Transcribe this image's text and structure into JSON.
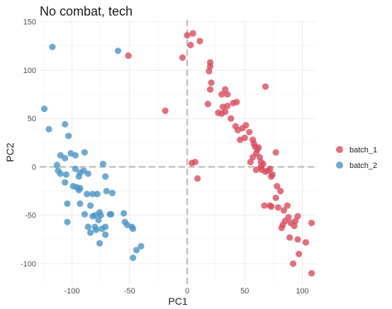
{
  "chart_data": {
    "type": "scatter",
    "title": "No combat, tech",
    "xlabel": "PC1",
    "ylabel": "PC2",
    "xlim": [
      -128,
      112
    ],
    "ylim": [
      -122,
      152
    ],
    "x_ticks": [
      -100,
      -50,
      0,
      50,
      100
    ],
    "y_ticks": [
      -100,
      -50,
      0,
      50,
      100,
      150
    ],
    "grid": true,
    "legend_position": "right",
    "reference_lines": {
      "x": 0,
      "y": 0
    },
    "series": [
      {
        "name": "batch_1",
        "color": "#D94B5E",
        "points": [
          [
            0,
            136
          ],
          [
            5,
            138
          ],
          [
            3,
            126
          ],
          [
            11,
            130
          ],
          [
            -4,
            113
          ],
          [
            -51,
            115
          ],
          [
            -19,
            58
          ],
          [
            20,
            104
          ],
          [
            20,
            108
          ],
          [
            19,
            99
          ],
          [
            21,
            87
          ],
          [
            20,
            80
          ],
          [
            18,
            65
          ],
          [
            30,
            75
          ],
          [
            33,
            80
          ],
          [
            35,
            75
          ],
          [
            40,
            66
          ],
          [
            43,
            67
          ],
          [
            27,
            56
          ],
          [
            30,
            55
          ],
          [
            33,
            57
          ],
          [
            31,
            62
          ],
          [
            35,
            63
          ],
          [
            68,
            83
          ],
          [
            38,
            50
          ],
          [
            42,
            42
          ],
          [
            44,
            38
          ],
          [
            48,
            40
          ],
          [
            51,
            43
          ],
          [
            54,
            36
          ],
          [
            46,
            28
          ],
          [
            50,
            30
          ],
          [
            57,
            28
          ],
          [
            58,
            24
          ],
          [
            59,
            21
          ],
          [
            61,
            18
          ],
          [
            60,
            14
          ],
          [
            62,
            20
          ],
          [
            63,
            10
          ],
          [
            64,
            5
          ],
          [
            57,
            10
          ],
          [
            55,
            5
          ],
          [
            64,
            0
          ],
          [
            66,
            3
          ],
          [
            60,
            -3
          ],
          [
            65,
            -3
          ],
          [
            70,
            -4
          ],
          [
            72,
            -2
          ],
          [
            74,
            -8
          ],
          [
            77,
            15
          ],
          [
            68,
            -5
          ],
          [
            73,
            -10
          ],
          [
            78,
            -20
          ],
          [
            81,
            -25
          ],
          [
            77,
            -32
          ],
          [
            67,
            -40
          ],
          [
            72,
            -40
          ],
          [
            73,
            -41
          ],
          [
            79,
            -42
          ],
          [
            84,
            -45
          ],
          [
            87,
            -40
          ],
          [
            85,
            -56
          ],
          [
            88,
            -52
          ],
          [
            90,
            -58
          ],
          [
            93,
            -61
          ],
          [
            96,
            -51
          ],
          [
            94,
            -56
          ],
          [
            83,
            -60
          ],
          [
            82,
            -63
          ],
          [
            89,
            -73
          ],
          [
            96,
            -75
          ],
          [
            103,
            -78
          ],
          [
            108,
            -58
          ],
          [
            97,
            -90
          ],
          [
            92,
            -100
          ],
          [
            108,
            -110
          ],
          [
            7,
            5
          ],
          [
            4,
            4
          ],
          [
            9,
            -12
          ]
        ]
      },
      {
        "name": "batch_2",
        "color": "#4B94C4",
        "points": [
          [
            -117,
            124
          ],
          [
            -60,
            120
          ],
          [
            -124,
            60
          ],
          [
            -120,
            39
          ],
          [
            -106,
            44
          ],
          [
            -103,
            32
          ],
          [
            -113,
            2
          ],
          [
            -110,
            12
          ],
          [
            -106,
            9
          ],
          [
            -101,
            14
          ],
          [
            -97,
            12
          ],
          [
            -89,
            15
          ],
          [
            -112,
            -4
          ],
          [
            -110,
            -7
          ],
          [
            -105,
            -8
          ],
          [
            -106,
            -16
          ],
          [
            -97,
            -2
          ],
          [
            -90,
            -4
          ],
          [
            -93,
            -6
          ],
          [
            -94,
            -10
          ],
          [
            -86,
            -7
          ],
          [
            -73,
            3
          ],
          [
            -96,
            -21
          ],
          [
            -99,
            -20
          ],
          [
            -93,
            -22
          ],
          [
            -94,
            -24
          ],
          [
            -87,
            -28
          ],
          [
            -82,
            -28
          ],
          [
            -78,
            -28
          ],
          [
            -70,
            -25
          ],
          [
            -65,
            -27
          ],
          [
            -104,
            -38
          ],
          [
            -93,
            -38
          ],
          [
            -84,
            -40
          ],
          [
            -89,
            -49
          ],
          [
            -82,
            -51
          ],
          [
            -76,
            -47
          ],
          [
            -75,
            -50
          ],
          [
            -77,
            -55
          ],
          [
            -66,
            -49
          ],
          [
            -67,
            -49
          ],
          [
            -104,
            -57
          ],
          [
            -86,
            -62
          ],
          [
            -80,
            -62
          ],
          [
            -79,
            -65
          ],
          [
            -84,
            -68
          ],
          [
            -71,
            -62
          ],
          [
            -74,
            -64
          ],
          [
            -76,
            -79
          ],
          [
            -71,
            -70
          ],
          [
            -55,
            -48
          ],
          [
            -54,
            -57
          ],
          [
            -52,
            -60
          ],
          [
            -47,
            -64
          ],
          [
            -48,
            -62
          ],
          [
            -40,
            -82
          ],
          [
            -44,
            -86
          ],
          [
            -47,
            -94
          ],
          [
            -80,
            -50
          ],
          [
            -71,
            -10
          ]
        ]
      }
    ]
  }
}
